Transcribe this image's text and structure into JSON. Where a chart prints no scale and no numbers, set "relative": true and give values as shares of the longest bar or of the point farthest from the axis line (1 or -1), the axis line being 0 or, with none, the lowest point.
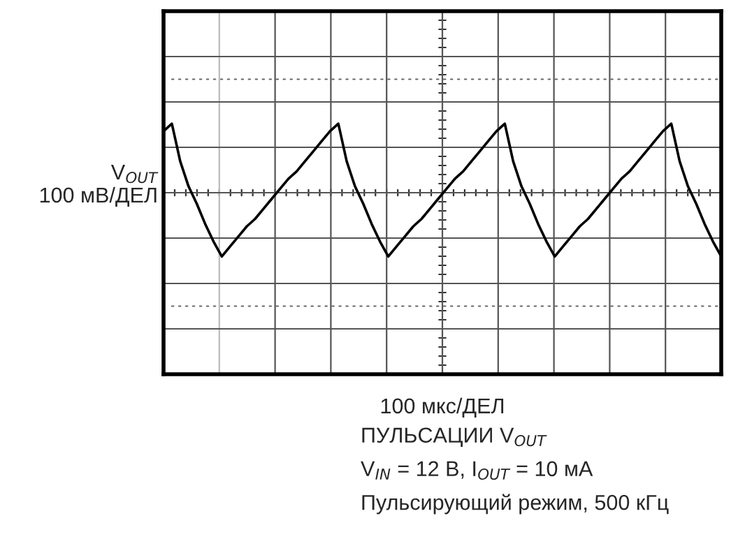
{
  "chart_data": {
    "type": "line",
    "relative": true,
    "tick_labels": false,
    "grid": true,
    "xlabel": "100 мкс/ДЕЛ",
    "ylabel": "V$_{OUT}$\n100 мВ/ДЕЛ",
    "annotations": [
      "ПУЛЬСАЦИИ V$_{OUT}$",
      "V$_{IN}$ = 12 В, I$_{OUT}$ = 10 мА",
      "Пульсирующий режим, 500 кГц"
    ],
    "categories": [
      null,
      null,
      null,
      null,
      null,
      null,
      null,
      null,
      null,
      null,
      null,
      null,
      null,
      null,
      null,
      null,
      null,
      null,
      null,
      null,
      null,
      null,
      null,
      null,
      null,
      null,
      null,
      null,
      null,
      null,
      null,
      null,
      null,
      null,
      null,
      null,
      null,
      null,
      null,
      null,
      null,
      null,
      null,
      null,
      null,
      null,
      null,
      null,
      null,
      null,
      null,
      null,
      null,
      null,
      null,
      null,
      null,
      null,
      null,
      null,
      null,
      null,
      null,
      null,
      null,
      null,
      null,
      null
    ],
    "series": [
      {
        "color": "#000000",
        "values": [
          0.97,
          1,
          0.85,
          0.75,
          0.68,
          0.6,
          0.53,
          0.47,
          0.51,
          0.55,
          0.59,
          0.62,
          0.66,
          0.7,
          0.74,
          0.78,
          0.81,
          0.85,
          0.89,
          0.93,
          0.97,
          1,
          0.85,
          0.75,
          0.68,
          0.6,
          0.53,
          0.47,
          0.51,
          0.55,
          0.59,
          0.62,
          0.66,
          0.7,
          0.74,
          0.78,
          0.81,
          0.85,
          0.89,
          0.93,
          0.97,
          1,
          0.85,
          0.75,
          0.68,
          0.6,
          0.53,
          0.47,
          0.51,
          0.55,
          0.59,
          0.62,
          0.66,
          0.7,
          0.74,
          0.78,
          0.81,
          0.85,
          0.89,
          0.93,
          0.97,
          1,
          0.85,
          0.75,
          0.68,
          0.6,
          0.53,
          0.47
        ]
      }
    ]
  }
}
